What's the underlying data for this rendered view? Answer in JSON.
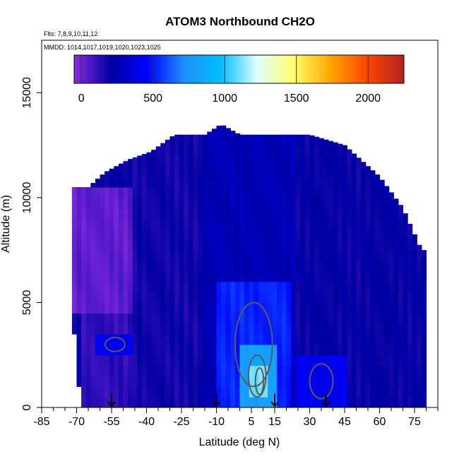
{
  "chart_data": {
    "type": "heatmap",
    "title": "ATOM3 Northbound CH2O",
    "flights_label": "Flts: 7,8,9,10,11,12",
    "dates_label": "MMDD: 1014,1017,1019,1020,1023,1025",
    "xlabel": "Latitude (deg N)",
    "ylabel": "Altitude (m)",
    "xlim": [
      -85,
      85
    ],
    "ylim": [
      0,
      17500
    ],
    "x_tick_labels": [
      "-85",
      "-70",
      "-55",
      "-40",
      "-25",
      "-10",
      "5",
      "15",
      "30",
      "45",
      "60",
      "75"
    ],
    "x_tick_values": [
      -85,
      -70,
      -55,
      -40,
      -25,
      -10,
      5,
      15,
      30,
      45,
      60,
      75
    ],
    "y_ticks": [
      0,
      5000,
      10000,
      15000
    ],
    "y_tick_labels": [
      "0",
      "5000",
      "10000",
      "15000"
    ],
    "colorbar": {
      "range": [
        -50,
        2250
      ],
      "ticks": [
        0,
        500,
        1000,
        1500,
        2000
      ],
      "tick_labels": [
        "0",
        "500",
        "1000",
        "1500",
        "2000"
      ],
      "colors": [
        "#8a2be2",
        "#0000a0",
        "#0000ff",
        "#1e90ff",
        "#00bfff",
        "#e0ffff",
        "#ffff66",
        "#ffa500",
        "#ff4500",
        "#b22222"
      ]
    },
    "arrow_latitudes": [
      -55,
      -10,
      15,
      37
    ],
    "data_coverage_top": [
      {
        "lat": -72,
        "alt": 10500
      },
      {
        "lat": -65,
        "alt": 10500
      },
      {
        "lat": -58,
        "alt": 11200
      },
      {
        "lat": -48,
        "alt": 11800
      },
      {
        "lat": -38,
        "alt": 12200
      },
      {
        "lat": -28,
        "alt": 13000
      },
      {
        "lat": -15,
        "alt": 13000
      },
      {
        "lat": -8,
        "alt": 13500
      },
      {
        "lat": 0,
        "alt": 13000
      },
      {
        "lat": 30,
        "alt": 13000
      },
      {
        "lat": 45,
        "alt": 12500
      },
      {
        "lat": 60,
        "alt": 11000
      },
      {
        "lat": 70,
        "alt": 9500
      },
      {
        "lat": 78,
        "alt": 7500
      }
    ],
    "data_coverage_bottom_left": [
      {
        "lat": -72,
        "alt": 5000
      },
      {
        "lat": -70,
        "alt": 2000
      },
      {
        "lat": -68,
        "alt": 0
      }
    ],
    "data_coverage_right_edge_lat": 79,
    "regions": [
      {
        "lat_min": -72,
        "lat_max": -45,
        "alt_min": 4500,
        "alt_max": 10500,
        "value": 30
      },
      {
        "lat_min": -68,
        "lat_max": -45,
        "alt_min": 0,
        "alt_max": 4500,
        "value": 120
      },
      {
        "lat_min": -62,
        "lat_max": -45,
        "alt_min": 2500,
        "alt_max": 3500,
        "value": 420
      },
      {
        "lat_min": -45,
        "lat_max": -15,
        "alt_min": 0,
        "alt_max": 13000,
        "value": 180
      },
      {
        "lat_min": -15,
        "lat_max": 25,
        "alt_min": 0,
        "alt_max": 13500,
        "value": 260
      },
      {
        "lat_min": -10,
        "lat_max": 22,
        "alt_min": 0,
        "alt_max": 6000,
        "value": 520
      },
      {
        "lat_min": 0,
        "lat_max": 15,
        "alt_min": 0,
        "alt_max": 3000,
        "value": 800
      },
      {
        "lat_min": 5,
        "lat_max": 12,
        "alt_min": 300,
        "alt_max": 2200,
        "value": 1100
      },
      {
        "lat_min": 25,
        "lat_max": 79,
        "alt_min": 0,
        "alt_max": 12500,
        "value": 200
      },
      {
        "lat_min": 25,
        "lat_max": 45,
        "alt_min": 0,
        "alt_max": 2500,
        "value": 420
      }
    ]
  }
}
